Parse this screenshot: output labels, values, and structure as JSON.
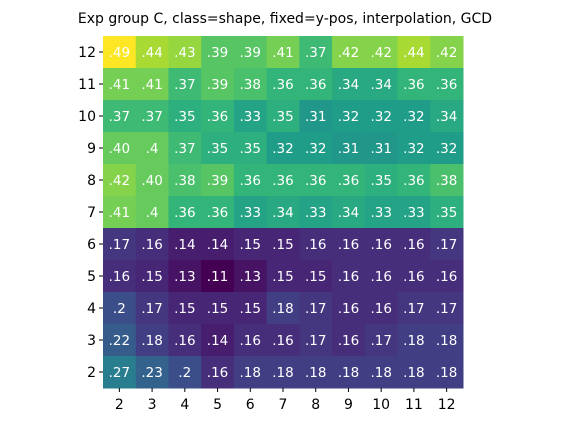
{
  "chart_data": {
    "type": "heatmap",
    "title": "Exp group C, class=shape, fixed=y-pos, interpolation, GCD",
    "colormap": "viridis",
    "x": [
      2,
      3,
      4,
      5,
      6,
      7,
      8,
      9,
      10,
      11,
      12
    ],
    "y": [
      12,
      11,
      10,
      9,
      8,
      7,
      6,
      5,
      4,
      3,
      2
    ],
    "values": [
      [
        0.49,
        0.44,
        0.43,
        0.39,
        0.39,
        0.41,
        0.37,
        0.42,
        0.42,
        0.44,
        0.42
      ],
      [
        0.41,
        0.41,
        0.37,
        0.39,
        0.38,
        0.36,
        0.36,
        0.34,
        0.34,
        0.36,
        0.36
      ],
      [
        0.37,
        0.37,
        0.35,
        0.36,
        0.33,
        0.35,
        0.31,
        0.32,
        0.32,
        0.32,
        0.34
      ],
      [
        0.4,
        0.4,
        0.37,
        0.35,
        0.35,
        0.32,
        0.32,
        0.31,
        0.31,
        0.32,
        0.32
      ],
      [
        0.42,
        0.4,
        0.38,
        0.39,
        0.36,
        0.36,
        0.36,
        0.36,
        0.35,
        0.36,
        0.38
      ],
      [
        0.41,
        0.4,
        0.36,
        0.36,
        0.33,
        0.34,
        0.33,
        0.34,
        0.33,
        0.33,
        0.35
      ],
      [
        0.17,
        0.16,
        0.14,
        0.14,
        0.15,
        0.15,
        0.16,
        0.16,
        0.16,
        0.16,
        0.17
      ],
      [
        0.16,
        0.15,
        0.13,
        0.11,
        0.13,
        0.15,
        0.15,
        0.16,
        0.16,
        0.16,
        0.16
      ],
      [
        0.2,
        0.17,
        0.15,
        0.15,
        0.15,
        0.18,
        0.17,
        0.16,
        0.16,
        0.17,
        0.17
      ],
      [
        0.22,
        0.18,
        0.16,
        0.14,
        0.16,
        0.16,
        0.17,
        0.16,
        0.17,
        0.18,
        0.18
      ],
      [
        0.27,
        0.23,
        0.2,
        0.16,
        0.18,
        0.18,
        0.18,
        0.18,
        0.18,
        0.18,
        0.18
      ]
    ],
    "value_labels": [
      [
        ".49",
        ".44",
        ".43",
        ".39",
        ".39",
        ".41",
        ".37",
        ".42",
        ".42",
        ".44",
        ".42"
      ],
      [
        ".41",
        ".41",
        ".37",
        ".39",
        ".38",
        ".36",
        ".36",
        ".34",
        ".34",
        ".36",
        ".36"
      ],
      [
        ".37",
        ".37",
        ".35",
        ".36",
        ".33",
        ".35",
        ".31",
        ".32",
        ".32",
        ".32",
        ".34"
      ],
      [
        ".40",
        ".4",
        ".37",
        ".35",
        ".35",
        ".32",
        ".32",
        ".31",
        ".31",
        ".32",
        ".32"
      ],
      [
        ".42",
        ".40",
        ".38",
        ".39",
        ".36",
        ".36",
        ".36",
        ".36",
        ".35",
        ".36",
        ".38"
      ],
      [
        ".41",
        ".4",
        ".36",
        ".36",
        ".33",
        ".34",
        ".33",
        ".34",
        ".33",
        ".33",
        ".35"
      ],
      [
        ".17",
        ".16",
        ".14",
        ".14",
        ".15",
        ".15",
        ".16",
        ".16",
        ".16",
        ".16",
        ".17"
      ],
      [
        ".16",
        ".15",
        ".13",
        ".11",
        ".13",
        ".15",
        ".15",
        ".16",
        ".16",
        ".16",
        ".16"
      ],
      [
        ".2",
        ".17",
        ".15",
        ".15",
        ".15",
        ".18",
        ".17",
        ".16",
        ".16",
        ".17",
        ".17"
      ],
      [
        ".22",
        ".18",
        ".16",
        ".14",
        ".16",
        ".16",
        ".17",
        ".16",
        ".17",
        ".18",
        ".18"
      ],
      [
        ".27",
        ".23",
        ".2",
        ".16",
        ".18",
        ".18",
        ".18",
        ".18",
        ".18",
        ".18",
        ".18"
      ]
    ]
  }
}
